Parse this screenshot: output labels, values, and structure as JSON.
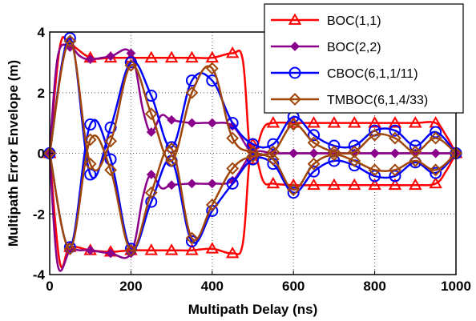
{
  "chart_data": {
    "type": "line",
    "title": "",
    "xlabel": "Multipath Delay (ns)",
    "ylabel": "Multipath Error Envelope (m)",
    "xlim": [
      0,
      1000
    ],
    "ylim": [
      -4,
      4
    ],
    "xticks": [
      0,
      200,
      400,
      600,
      800,
      1000
    ],
    "yticks": [
      -4,
      -2,
      0,
      2,
      4
    ],
    "grid": true,
    "legend_position": "top-right",
    "series": [
      {
        "name": "BOC(1,1)",
        "color": "#ff0000",
        "marker": "triangle",
        "branches": [
          {
            "x": [
              0,
              25,
              50,
              100,
              150,
              200,
              250,
              300,
              350,
              400,
              450,
              475,
              490,
              500,
              525,
              550,
              600,
              650,
              700,
              750,
              800,
              850,
              900,
              950,
              975,
              1000
            ],
            "y": [
              0,
              3.5,
              3.6,
              3.15,
              3.15,
              3.15,
              3.15,
              3.15,
              3.15,
              3.15,
              3.3,
              3.1,
              0.5,
              -0.2,
              0.8,
              1.0,
              1.0,
              1.0,
              1.0,
              1.0,
              1.0,
              1.0,
              1.0,
              1.0,
              0.6,
              0
            ]
          },
          {
            "x": [
              0,
              25,
              50,
              100,
              150,
              200,
              250,
              300,
              350,
              400,
              450,
              475,
              490,
              500,
              525,
              550,
              600,
              650,
              700,
              750,
              800,
              850,
              900,
              950,
              975,
              1000
            ],
            "y": [
              0,
              -3.6,
              -3.1,
              -3.2,
              -3.25,
              -3.2,
              -3.2,
              -3.2,
              -3.2,
              -3.15,
              -3.3,
              -3.0,
              -0.5,
              0.3,
              -0.9,
              -1.0,
              -1.05,
              -1.05,
              -1.05,
              -1.05,
              -1.05,
              -1.05,
              -1.05,
              -1.0,
              -0.6,
              0
            ]
          }
        ]
      },
      {
        "name": "BOC(2,2)",
        "color": "#8b008b",
        "marker": "diamond-filled",
        "branches": [
          {
            "x": [
              0,
              20,
              50,
              75,
              100,
              150,
              200,
              230,
              250,
              275,
              300,
              350,
              400,
              450,
              500,
              550,
              600,
              650,
              700,
              750,
              800,
              850,
              900,
              950,
              1000
            ],
            "y": [
              0,
              3.2,
              3.5,
              3.2,
              3.1,
              3.2,
              3.3,
              1.4,
              0.7,
              1.25,
              1.1,
              1.0,
              1.0,
              0.9,
              0,
              0,
              0,
              0,
              0,
              0,
              0,
              0,
              0,
              0,
              0
            ]
          },
          {
            "x": [
              0,
              20,
              50,
              75,
              100,
              150,
              200,
              230,
              250,
              275,
              300,
              350,
              400,
              450,
              500,
              550,
              600,
              650,
              700,
              750,
              800,
              850,
              900,
              950,
              1000
            ],
            "y": [
              0,
              -3.7,
              -3.2,
              -3.2,
              -3.2,
              -3.3,
              -3.3,
              -1.4,
              -0.7,
              -1.15,
              -1.05,
              -1.0,
              -1.0,
              -0.9,
              0,
              0,
              0,
              0,
              0,
              0,
              0,
              0,
              0,
              0,
              0
            ]
          }
        ]
      },
      {
        "name": "CBOC(6,1,1/11)",
        "color": "#0000ff",
        "marker": "circle",
        "branches": [
          {
            "x": [
              0,
              50,
              100,
              150,
              200,
              250,
              300,
              350,
              400,
              450,
              500,
              550,
              600,
              650,
              700,
              750,
              800,
              850,
              900,
              950,
              1000
            ],
            "y": [
              0,
              3.8,
              -0.7,
              0.85,
              3.0,
              1.9,
              0.2,
              2.4,
              2.4,
              1.0,
              0.3,
              0.3,
              1.2,
              0.6,
              0.25,
              0.25,
              0.75,
              0.75,
              0.25,
              0.7,
              0
            ]
          },
          {
            "x": [
              0,
              50,
              100,
              150,
              200,
              250,
              300,
              350,
              400,
              450,
              500,
              550,
              600,
              650,
              700,
              750,
              800,
              850,
              900,
              950,
              1000
            ],
            "y": [
              0,
              -3.1,
              0.95,
              -0.2,
              -3.15,
              -1.6,
              -0.25,
              -2.9,
              -1.9,
              -1.0,
              -0.2,
              -0.35,
              -1.3,
              -0.6,
              -0.25,
              -0.4,
              -0.75,
              -0.75,
              -0.3,
              -0.65,
              0
            ]
          }
        ]
      },
      {
        "name": "TMBOC(6,1,4/33)",
        "color": "#a0460a",
        "marker": "diamond",
        "branches": [
          {
            "x": [
              0,
              50,
              100,
              150,
              200,
              250,
              300,
              350,
              400,
              450,
              500,
              550,
              600,
              650,
              700,
              750,
              800,
              850,
              900,
              950,
              1000
            ],
            "y": [
              0,
              3.7,
              -0.35,
              0.4,
              2.9,
              1.3,
              -0.25,
              2.0,
              2.8,
              0.5,
              0.05,
              0.05,
              0.95,
              0.35,
              0.05,
              0.05,
              0.6,
              0.5,
              0.05,
              0.5,
              0
            ]
          },
          {
            "x": [
              0,
              50,
              100,
              150,
              200,
              250,
              300,
              350,
              400,
              450,
              500,
              550,
              600,
              650,
              700,
              750,
              800,
              850,
              900,
              950,
              1000
            ],
            "y": [
              0,
              -3.15,
              0.45,
              -0.55,
              -3.2,
              -1.3,
              0.15,
              -2.8,
              -1.7,
              -0.5,
              -0.1,
              -0.2,
              -1.2,
              -0.35,
              -0.05,
              -0.25,
              -0.55,
              -0.55,
              -0.25,
              -0.55,
              0
            ]
          }
        ]
      }
    ]
  }
}
